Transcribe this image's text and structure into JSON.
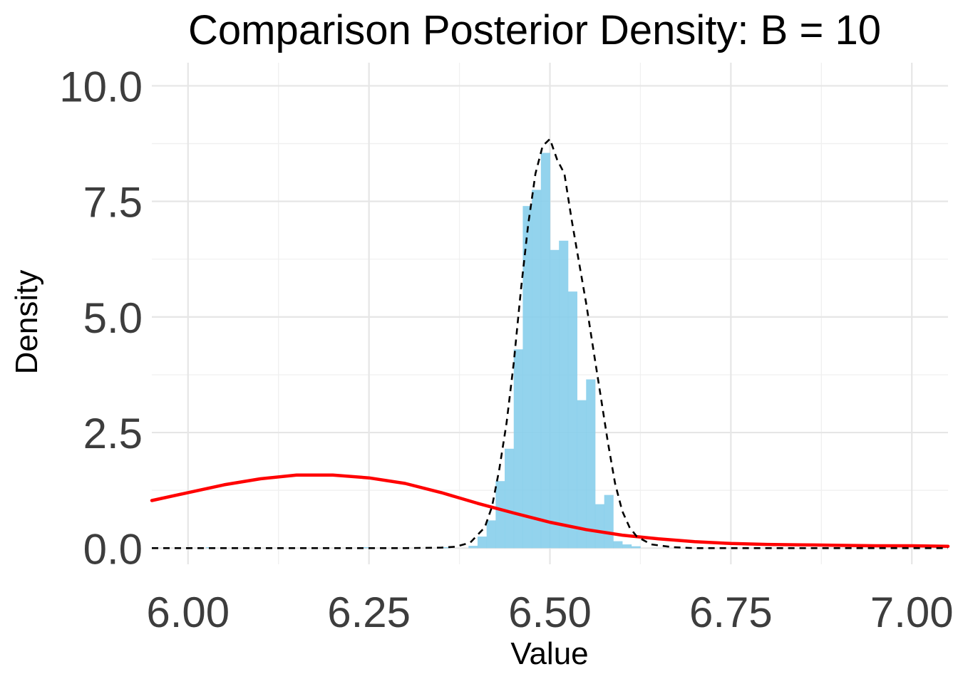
{
  "chart_data": {
    "type": "histogram",
    "title": "Comparison Posterior Density: B = 10",
    "xlabel": "Value",
    "ylabel": "Density",
    "xlim": [
      5.95,
      7.05
    ],
    "ylim": [
      -0.35,
      10.5
    ],
    "x_ticks": [
      6.0,
      6.25,
      6.5,
      6.75,
      7.0
    ],
    "x_tick_labels": [
      "6.00",
      "6.25",
      "6.50",
      "6.75",
      "7.00"
    ],
    "y_ticks": [
      0.0,
      2.5,
      5.0,
      7.5,
      10.0
    ],
    "y_tick_labels": [
      "0.0",
      "2.5",
      "5.0",
      "7.5",
      "10.0"
    ],
    "grid": true,
    "histogram": {
      "color": "#87ceeb",
      "bin_width": 0.0125,
      "bars": [
        {
          "x0": 6.025,
          "density": 0.02
        },
        {
          "x0": 6.2375,
          "density": 0.02
        },
        {
          "x0": 6.35,
          "density": 0.02
        },
        {
          "x0": 6.3875,
          "density": 0.05
        },
        {
          "x0": 6.4,
          "density": 0.25
        },
        {
          "x0": 6.4125,
          "density": 0.6
        },
        {
          "x0": 6.425,
          "density": 1.45
        },
        {
          "x0": 6.4375,
          "density": 2.15
        },
        {
          "x0": 6.45,
          "density": 4.3
        },
        {
          "x0": 6.4625,
          "density": 7.4
        },
        {
          "x0": 6.475,
          "density": 7.75
        },
        {
          "x0": 6.4875,
          "density": 8.55
        },
        {
          "x0": 6.5,
          "density": 6.45
        },
        {
          "x0": 6.5125,
          "density": 6.65
        },
        {
          "x0": 6.525,
          "density": 5.55
        },
        {
          "x0": 6.5375,
          "density": 3.2
        },
        {
          "x0": 6.55,
          "density": 3.65
        },
        {
          "x0": 6.5625,
          "density": 0.95
        },
        {
          "x0": 6.575,
          "density": 1.15
        },
        {
          "x0": 6.5875,
          "density": 0.15
        },
        {
          "x0": 6.6,
          "density": 0.08
        },
        {
          "x0": 6.6125,
          "density": 0.04
        }
      ]
    },
    "series": [
      {
        "style": "solid",
        "color": "#ff0000",
        "x": [
          5.95,
          6.0,
          6.05,
          6.1,
          6.15,
          6.2,
          6.25,
          6.3,
          6.35,
          6.4,
          6.45,
          6.5,
          6.55,
          6.6,
          6.65,
          6.7,
          6.75,
          6.8,
          6.85,
          6.9,
          6.95,
          7.0,
          7.05
        ],
        "y": [
          1.03,
          1.2,
          1.37,
          1.5,
          1.58,
          1.58,
          1.52,
          1.4,
          1.2,
          0.97,
          0.76,
          0.56,
          0.4,
          0.28,
          0.2,
          0.14,
          0.1,
          0.08,
          0.07,
          0.06,
          0.05,
          0.05,
          0.04
        ]
      },
      {
        "style": "dashed",
        "color": "#000000",
        "x": [
          5.95,
          6.3,
          6.35,
          6.37,
          6.39,
          6.41,
          6.42,
          6.43,
          6.44,
          6.45,
          6.46,
          6.47,
          6.48,
          6.49,
          6.5,
          6.51,
          6.52,
          6.53,
          6.54,
          6.55,
          6.56,
          6.57,
          6.58,
          6.59,
          6.6,
          6.61,
          6.62,
          6.64,
          6.67,
          6.7,
          7.05
        ],
        "y": [
          0.0,
          0.0,
          0.01,
          0.03,
          0.12,
          0.45,
          0.9,
          1.7,
          2.7,
          4.0,
          5.6,
          7.0,
          8.1,
          8.7,
          8.85,
          8.4,
          8.1,
          7.1,
          6.2,
          5.3,
          4.3,
          3.3,
          2.3,
          1.4,
          0.8,
          0.45,
          0.25,
          0.08,
          0.02,
          0.0,
          0.0
        ]
      }
    ]
  }
}
